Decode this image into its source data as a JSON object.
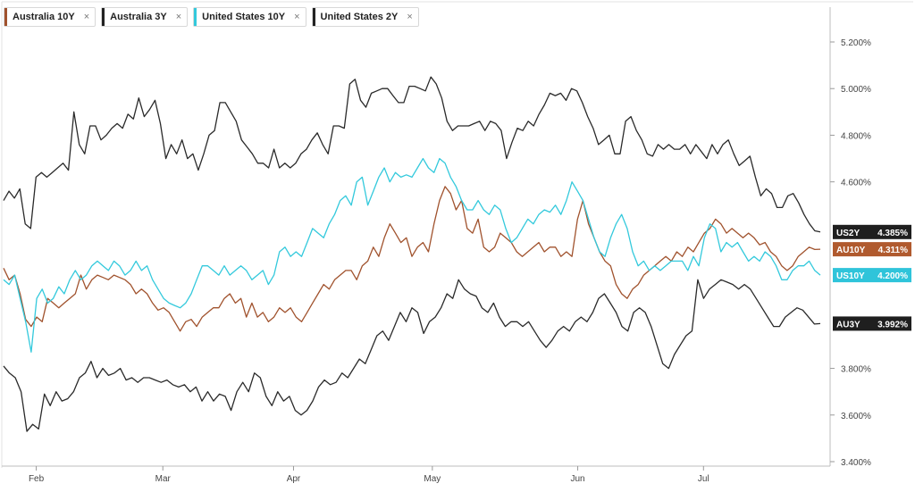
{
  "legend": [
    {
      "label": "Australia 10Y",
      "close": "×",
      "color": "#a0522d"
    },
    {
      "label": "Australia 3Y",
      "close": "×",
      "color": "#222222"
    },
    {
      "label": "United States 10Y",
      "close": "×",
      "color": "#33c9dc"
    },
    {
      "label": "United States 2Y",
      "close": "×",
      "color": "#222222"
    }
  ],
  "chart_data": {
    "type": "line",
    "y_ticks": [
      "5.200%",
      "5.000%",
      "4.800%",
      "4.600%",
      "3.800%",
      "3.600%",
      "3.400%"
    ],
    "ylim": [
      3.4,
      5.35
    ],
    "x_ticks": [
      {
        "label": "Feb",
        "t": 0.04
      },
      {
        "label": "Mar",
        "t": 0.195
      },
      {
        "label": "Apr",
        "t": 0.355
      },
      {
        "label": "May",
        "t": 0.525
      },
      {
        "label": "Jun",
        "t": 0.703
      },
      {
        "label": "Jul",
        "t": 0.857
      }
    ],
    "grid": false,
    "series": [
      {
        "name": "United States 2Y",
        "tag": "US2Y",
        "last_value_label": "4.385%",
        "color": "#2a2a2a",
        "values": [
          4.52,
          4.56,
          4.53,
          4.57,
          4.42,
          4.4,
          4.62,
          4.64,
          4.62,
          4.64,
          4.66,
          4.68,
          4.65,
          4.9,
          4.76,
          4.72,
          4.84,
          4.84,
          4.78,
          4.8,
          4.83,
          4.85,
          4.83,
          4.89,
          4.87,
          4.96,
          4.88,
          4.91,
          4.95,
          4.85,
          4.7,
          4.76,
          4.72,
          4.78,
          4.7,
          4.72,
          4.65,
          4.72,
          4.8,
          4.82,
          4.94,
          4.94,
          4.9,
          4.86,
          4.78,
          4.75,
          4.72,
          4.68,
          4.68,
          4.66,
          4.74,
          4.66,
          4.68,
          4.66,
          4.68,
          4.72,
          4.74,
          4.78,
          4.81,
          4.76,
          4.72,
          4.84,
          4.84,
          4.83,
          5.02,
          5.04,
          4.95,
          4.92,
          4.98,
          4.99,
          5.0,
          5.0,
          4.97,
          4.94,
          4.94,
          5.01,
          5.01,
          5.0,
          4.99,
          5.05,
          5.02,
          4.96,
          4.86,
          4.82,
          4.84,
          4.84,
          4.84,
          4.85,
          4.86,
          4.82,
          4.86,
          4.85,
          4.82,
          4.7,
          4.77,
          4.83,
          4.82,
          4.86,
          4.84,
          4.89,
          4.93,
          4.98,
          4.97,
          4.98,
          4.95,
          5.0,
          4.99,
          4.94,
          4.88,
          4.83,
          4.76,
          4.78,
          4.8,
          4.72,
          4.72,
          4.86,
          4.88,
          4.82,
          4.78,
          4.72,
          4.71,
          4.76,
          4.74,
          4.76,
          4.74,
          4.74,
          4.76,
          4.72,
          4.76,
          4.73,
          4.7,
          4.76,
          4.72,
          4.76,
          4.78,
          4.72,
          4.67,
          4.69,
          4.71,
          4.62,
          4.54,
          4.57,
          4.55,
          4.49,
          4.49,
          4.54,
          4.55,
          4.51,
          4.46,
          4.42,
          4.39,
          4.385
        ]
      },
      {
        "name": "Australia 10Y",
        "tag": "AU10Y",
        "last_value_label": "4.311%",
        "color": "#a0522d",
        "values": [
          4.23,
          4.18,
          4.2,
          4.12,
          4.01,
          3.98,
          4.02,
          4.0,
          4.1,
          4.08,
          4.06,
          4.08,
          4.1,
          4.12,
          4.2,
          4.14,
          4.18,
          4.2,
          4.19,
          4.18,
          4.2,
          4.19,
          4.18,
          4.16,
          4.12,
          4.14,
          4.12,
          4.08,
          4.05,
          4.06,
          4.04,
          4.0,
          3.96,
          4.0,
          4.01,
          3.98,
          4.02,
          4.04,
          4.06,
          4.06,
          4.1,
          4.12,
          4.08,
          4.1,
          4.02,
          4.08,
          4.02,
          4.04,
          4.0,
          4.02,
          4.06,
          4.04,
          4.06,
          4.02,
          4.0,
          4.04,
          4.08,
          4.12,
          4.16,
          4.14,
          4.18,
          4.2,
          4.22,
          4.22,
          4.18,
          4.24,
          4.26,
          4.32,
          4.28,
          4.36,
          4.42,
          4.38,
          4.34,
          4.36,
          4.28,
          4.32,
          4.34,
          4.3,
          4.42,
          4.52,
          4.58,
          4.55,
          4.48,
          4.52,
          4.4,
          4.38,
          4.44,
          4.32,
          4.3,
          4.32,
          4.38,
          4.36,
          4.34,
          4.3,
          4.28,
          4.3,
          4.32,
          4.34,
          4.3,
          4.32,
          4.32,
          4.28,
          4.3,
          4.28,
          4.44,
          4.52,
          4.42,
          4.36,
          4.3,
          4.26,
          4.24,
          4.16,
          4.12,
          4.1,
          4.14,
          4.16,
          4.2,
          4.22,
          4.24,
          4.26,
          4.28,
          4.26,
          4.3,
          4.28,
          4.32,
          4.3,
          4.34,
          4.38,
          4.4,
          4.44,
          4.42,
          4.38,
          4.4,
          4.38,
          4.36,
          4.38,
          4.36,
          4.33,
          4.34,
          4.3,
          4.28,
          4.24,
          4.22,
          4.24,
          4.28,
          4.3,
          4.32,
          4.31,
          4.311
        ]
      },
      {
        "name": "United States 10Y",
        "tag": "US10Y",
        "last_value_label": "4.200%",
        "color": "#33c9dc",
        "values": [
          4.18,
          4.16,
          4.2,
          4.1,
          4.0,
          3.87,
          4.1,
          4.14,
          4.08,
          4.1,
          4.15,
          4.12,
          4.18,
          4.22,
          4.18,
          4.2,
          4.24,
          4.26,
          4.24,
          4.22,
          4.26,
          4.24,
          4.2,
          4.22,
          4.26,
          4.22,
          4.24,
          4.18,
          4.14,
          4.1,
          4.08,
          4.07,
          4.06,
          4.08,
          4.12,
          4.18,
          4.24,
          4.24,
          4.22,
          4.2,
          4.24,
          4.2,
          4.22,
          4.24,
          4.22,
          4.18,
          4.2,
          4.22,
          4.16,
          4.2,
          4.3,
          4.32,
          4.28,
          4.3,
          4.28,
          4.34,
          4.4,
          4.38,
          4.36,
          4.42,
          4.46,
          4.52,
          4.54,
          4.5,
          4.6,
          4.62,
          4.5,
          4.56,
          4.62,
          4.66,
          4.6,
          4.64,
          4.62,
          4.63,
          4.62,
          4.66,
          4.7,
          4.66,
          4.64,
          4.7,
          4.68,
          4.62,
          4.58,
          4.52,
          4.48,
          4.48,
          4.52,
          4.48,
          4.46,
          4.5,
          4.48,
          4.4,
          4.34,
          4.36,
          4.4,
          4.44,
          4.42,
          4.46,
          4.48,
          4.47,
          4.5,
          4.46,
          4.52,
          4.6,
          4.56,
          4.52,
          4.44,
          4.36,
          4.3,
          4.28,
          4.36,
          4.42,
          4.46,
          4.4,
          4.3,
          4.24,
          4.26,
          4.22,
          4.24,
          4.22,
          4.24,
          4.26,
          4.26,
          4.26,
          4.22,
          4.28,
          4.24,
          4.36,
          4.42,
          4.4,
          4.3,
          4.34,
          4.32,
          4.34,
          4.3,
          4.26,
          4.28,
          4.26,
          4.3,
          4.28,
          4.24,
          4.18,
          4.18,
          4.22,
          4.24,
          4.24,
          4.26,
          4.22,
          4.2
        ]
      },
      {
        "name": "Australia 3Y",
        "tag": "AU3Y",
        "last_value_label": "3.992%",
        "color": "#2a2a2a",
        "values": [
          3.81,
          3.78,
          3.76,
          3.7,
          3.53,
          3.56,
          3.54,
          3.69,
          3.64,
          3.7,
          3.66,
          3.67,
          3.7,
          3.76,
          3.78,
          3.83,
          3.76,
          3.8,
          3.77,
          3.78,
          3.8,
          3.75,
          3.76,
          3.74,
          3.76,
          3.76,
          3.75,
          3.74,
          3.75,
          3.73,
          3.72,
          3.73,
          3.7,
          3.72,
          3.66,
          3.7,
          3.66,
          3.69,
          3.68,
          3.62,
          3.7,
          3.74,
          3.7,
          3.78,
          3.76,
          3.68,
          3.64,
          3.7,
          3.66,
          3.68,
          3.62,
          3.6,
          3.62,
          3.66,
          3.72,
          3.75,
          3.73,
          3.74,
          3.78,
          3.76,
          3.8,
          3.84,
          3.82,
          3.88,
          3.94,
          3.96,
          3.92,
          3.98,
          4.04,
          4.0,
          4.06,
          4.04,
          3.95,
          4.0,
          4.02,
          4.06,
          4.12,
          4.1,
          4.18,
          4.14,
          4.12,
          4.11,
          4.06,
          4.04,
          4.08,
          4.02,
          3.98,
          4.0,
          4.0,
          3.98,
          4.0,
          3.96,
          3.92,
          3.89,
          3.92,
          3.96,
          3.98,
          3.96,
          4.0,
          4.02,
          4.0,
          4.04,
          4.1,
          4.12,
          4.08,
          4.04,
          3.98,
          3.96,
          4.04,
          4.06,
          4.04,
          3.98,
          3.9,
          3.82,
          3.8,
          3.86,
          3.9,
          3.94,
          3.96,
          4.18,
          4.1,
          4.14,
          4.16,
          4.18,
          4.17,
          4.16,
          4.14,
          4.16,
          4.14,
          4.1,
          4.06,
          4.02,
          3.98,
          3.98,
          4.02,
          4.04,
          4.06,
          4.05,
          4.02,
          3.99,
          3.992
        ]
      }
    ]
  }
}
